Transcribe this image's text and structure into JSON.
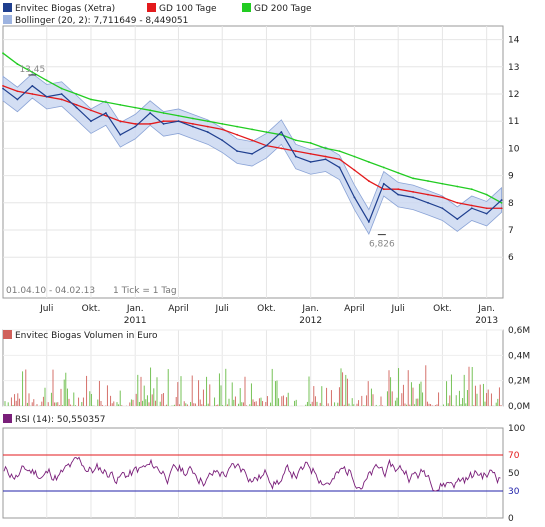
{
  "chart_data": [
    {
      "type": "line",
      "panel": "price",
      "legend": [
        {
          "label": "Envitec Biogas (Xetra)",
          "color": "#1f3f8f"
        },
        {
          "label": "GD 100 Tage",
          "color": "#e31a1c"
        },
        {
          "label": "GD 200 Tage",
          "color": "#22cc22"
        },
        {
          "label": "Bollinger (20, 2): 7,711649 - 8,449051",
          "color": "#9db3e0"
        }
      ],
      "date_range_note": "01.04.10 - 04.02.13",
      "tick_note": "1 Tick = 1 Tag",
      "ylim": [
        4.5,
        14.5
      ],
      "yticks": [
        "14",
        "13",
        "12",
        "11",
        "10",
        "9",
        "8",
        "7",
        "6"
      ],
      "xticks": [
        "Juli",
        "Okt.",
        "Jan.",
        "April",
        "Juli",
        "Okt.",
        "Jan.",
        "April",
        "Juli",
        "Okt.",
        "Jan."
      ],
      "xtick_years": [
        "2011",
        "2012",
        "2013"
      ],
      "annotations": [
        {
          "label": "13,45",
          "x": "2010-06-01",
          "y": 12.7
        },
        {
          "label": "6,826",
          "x": "2012-05-28",
          "y": 6.83
        }
      ],
      "x": [
        "2010-04-01",
        "2010-05-01",
        "2010-06-01",
        "2010-07-01",
        "2010-08-01",
        "2010-09-01",
        "2010-10-01",
        "2010-11-01",
        "2010-12-01",
        "2011-01-01",
        "2011-02-01",
        "2011-03-01",
        "2011-04-01",
        "2011-05-01",
        "2011-06-01",
        "2011-07-01",
        "2011-08-01",
        "2011-09-01",
        "2011-10-01",
        "2011-11-01",
        "2011-12-01",
        "2012-01-01",
        "2012-02-01",
        "2012-03-01",
        "2012-04-01",
        "2012-05-01",
        "2012-06-01",
        "2012-07-01",
        "2012-08-01",
        "2012-09-01",
        "2012-10-01",
        "2012-11-01",
        "2012-12-01",
        "2013-01-01",
        "2013-02-01"
      ],
      "series": [
        {
          "name": "Envitec Biogas (Xetra)",
          "color": "#1f3f8f",
          "values": [
            12.2,
            11.8,
            12.3,
            11.9,
            12.0,
            11.5,
            11.0,
            11.3,
            10.5,
            10.8,
            11.3,
            10.9,
            11.0,
            10.8,
            10.6,
            10.3,
            9.9,
            9.8,
            10.1,
            10.6,
            9.7,
            9.5,
            9.6,
            9.3,
            8.2,
            7.3,
            8.7,
            8.3,
            8.2,
            8.0,
            7.8,
            7.4,
            7.8,
            7.6,
            8.1
          ]
        },
        {
          "name": "GD 100 Tage",
          "color": "#e31a1c",
          "values": [
            12.3,
            12.1,
            12.0,
            11.9,
            11.8,
            11.6,
            11.4,
            11.2,
            11.0,
            10.9,
            10.9,
            11.0,
            11.0,
            10.9,
            10.8,
            10.7,
            10.5,
            10.3,
            10.1,
            10.0,
            9.9,
            9.8,
            9.7,
            9.6,
            9.2,
            8.8,
            8.5,
            8.5,
            8.4,
            8.3,
            8.2,
            8.0,
            7.9,
            7.8,
            7.8
          ]
        },
        {
          "name": "GD 200 Tage",
          "color": "#22cc22",
          "values": [
            13.5,
            13.1,
            12.8,
            12.5,
            12.2,
            12.0,
            11.8,
            11.7,
            11.6,
            11.5,
            11.4,
            11.3,
            11.2,
            11.1,
            11.0,
            10.9,
            10.8,
            10.7,
            10.6,
            10.5,
            10.3,
            10.2,
            10.0,
            9.9,
            9.7,
            9.5,
            9.3,
            9.1,
            8.9,
            8.8,
            8.7,
            8.6,
            8.5,
            8.3,
            8.0
          ]
        }
      ]
    },
    {
      "type": "bar",
      "panel": "volume",
      "legend": [
        {
          "label": "Envitec Biogas Volumen in Euro",
          "color": "#d0605a"
        }
      ],
      "yticks": [
        "0,6M",
        "0,4M",
        "0,2M",
        "0,0M"
      ],
      "ylim": [
        0,
        600000
      ]
    },
    {
      "type": "line",
      "panel": "rsi",
      "legend": [
        {
          "label": "RSI (14): 50,550357",
          "color": "#7a1f7a"
        }
      ],
      "yticks": [
        "100",
        "70",
        "50",
        "30",
        "0"
      ],
      "ylim": [
        0,
        100
      ],
      "bands": [
        {
          "value": 70,
          "color": "#e31a1c"
        },
        {
          "value": 30,
          "color": "#2222aa"
        }
      ]
    }
  ]
}
